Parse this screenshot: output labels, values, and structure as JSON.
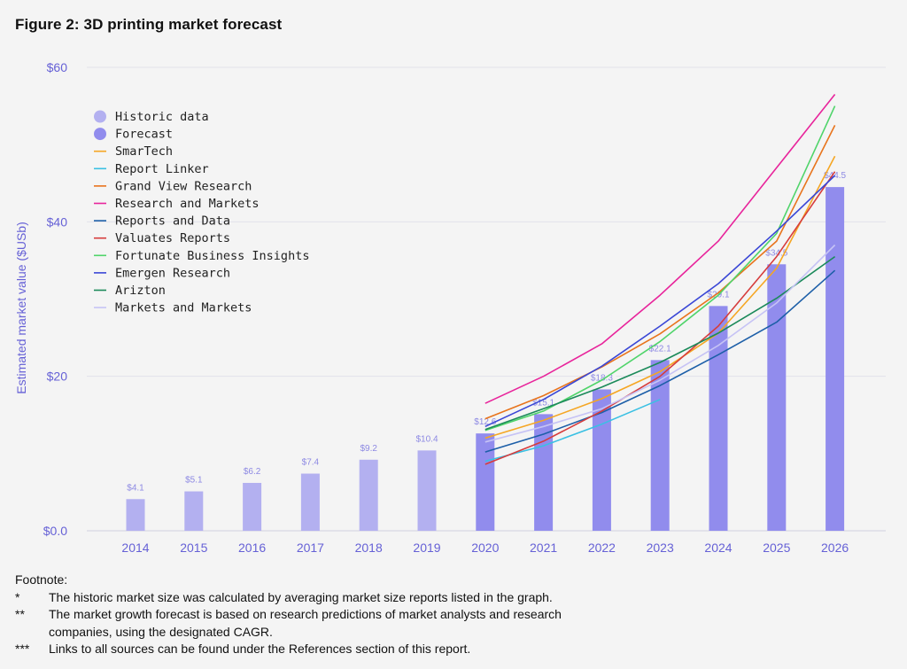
{
  "title": "Figure 2: 3D printing market forecast",
  "footnote": {
    "heading": "Footnote:",
    "items": [
      {
        "mark": "*",
        "text": "The historic market size was calculated by averaging market size reports listed in the graph."
      },
      {
        "mark": "**",
        "text": "The market growth forecast is based on research predictions of market analysts and research companies, using the designated CAGR."
      },
      {
        "mark": "***",
        "text": "Links to all sources can be found under the References section of this report."
      }
    ]
  },
  "chart_data": {
    "type": "bar",
    "title": "",
    "xlabel": "",
    "ylabel": "Estimated market value ($USb)",
    "ylim": [
      0,
      60
    ],
    "yticks": [
      {
        "value": 0,
        "label": "$0.0"
      },
      {
        "value": 20,
        "label": "$20"
      },
      {
        "value": 40,
        "label": "$40"
      },
      {
        "value": 60,
        "label": "$60"
      }
    ],
    "grid": true,
    "legend_position": "top-left",
    "categories": [
      "2014",
      "2015",
      "2016",
      "2017",
      "2018",
      "2019",
      "2020",
      "2021",
      "2022",
      "2023",
      "2024",
      "2025",
      "2026"
    ],
    "bars": [
      {
        "name": "Historic data",
        "color": "#b3b0f0",
        "values": [
          4.1,
          5.1,
          6.2,
          7.4,
          9.2,
          10.4,
          null,
          null,
          null,
          null,
          null,
          null,
          null
        ],
        "labels": [
          "$4.1",
          "$5.1",
          "$6.2",
          "$7.4",
          "$9.2",
          "$10.4",
          null,
          null,
          null,
          null,
          null,
          null,
          null
        ]
      },
      {
        "name": "Forecast",
        "color": "#918ced",
        "values": [
          null,
          null,
          null,
          null,
          null,
          null,
          12.6,
          15.1,
          18.3,
          22.1,
          29.1,
          34.5,
          44.5
        ],
        "labels": [
          null,
          null,
          null,
          null,
          null,
          null,
          "$12.6",
          "$15.1",
          "$18.3",
          "$22.1",
          "$29.1",
          "$34.5",
          "$44.5"
        ]
      }
    ],
    "series": [
      {
        "name": "SmarTech",
        "color": "#f5a623",
        "x": [
          2020,
          2021,
          2022,
          2023,
          2024,
          2025,
          2026
        ],
        "values": [
          12.0,
          14.3,
          17.1,
          20.6,
          25.6,
          34.0,
          48.5
        ]
      },
      {
        "name": "Report Linker",
        "color": "#3ac0e3",
        "x": [
          2020,
          2021,
          2022,
          2023,
          2024,
          2025,
          2026
        ],
        "values": [
          9.0,
          11.0,
          13.8,
          17.0,
          null,
          null,
          null
        ]
      },
      {
        "name": "Grand View Research",
        "color": "#e8741c",
        "x": [
          2020,
          2021,
          2022,
          2023,
          2024,
          2025,
          2026
        ],
        "values": [
          14.5,
          17.5,
          21.2,
          25.5,
          30.8,
          37.5,
          52.5
        ]
      },
      {
        "name": "Research and Markets",
        "color": "#e8249b",
        "x": [
          2020,
          2021,
          2022,
          2023,
          2024,
          2025,
          2026
        ],
        "values": [
          16.5,
          20.0,
          24.2,
          30.5,
          37.5,
          47.0,
          56.5
        ]
      },
      {
        "name": "Reports and Data",
        "color": "#1d5fa8",
        "x": [
          2020,
          2021,
          2022,
          2023,
          2024,
          2025,
          2026
        ],
        "values": [
          10.2,
          12.5,
          15.3,
          18.8,
          22.8,
          27.0,
          33.7
        ]
      },
      {
        "name": "Valuates Reports",
        "color": "#d63c3c",
        "x": [
          2020,
          2021,
          2022,
          2023,
          2024,
          2025,
          2026
        ],
        "values": [
          8.6,
          11.6,
          15.5,
          20.0,
          26.5,
          35.5,
          46.5
        ]
      },
      {
        "name": "Fortunate Business Insights",
        "color": "#4fd46a",
        "x": [
          2020,
          2021,
          2022,
          2023,
          2024,
          2025,
          2026
        ],
        "values": [
          13.0,
          15.5,
          19.5,
          24.5,
          30.5,
          38.5,
          55.0
        ]
      },
      {
        "name": "Emergen Research",
        "color": "#3a47d6",
        "x": [
          2020,
          2021,
          2022,
          2023,
          2024,
          2025,
          2026
        ],
        "values": [
          13.5,
          17.0,
          21.3,
          26.5,
          32.0,
          38.8,
          46.0
        ]
      },
      {
        "name": "Arizton",
        "color": "#1b8a5a",
        "x": [
          2020,
          2021,
          2022,
          2023,
          2024,
          2025,
          2026
        ],
        "values": [
          13.1,
          15.8,
          18.6,
          21.8,
          25.6,
          30.1,
          35.5
        ]
      },
      {
        "name": "Markets and Markets",
        "color": "#c6c3f5",
        "x": [
          2020,
          2021,
          2022,
          2023,
          2024,
          2025,
          2026
        ],
        "values": [
          11.5,
          13.5,
          15.8,
          19.5,
          24.0,
          29.5,
          37.0
        ]
      }
    ]
  }
}
